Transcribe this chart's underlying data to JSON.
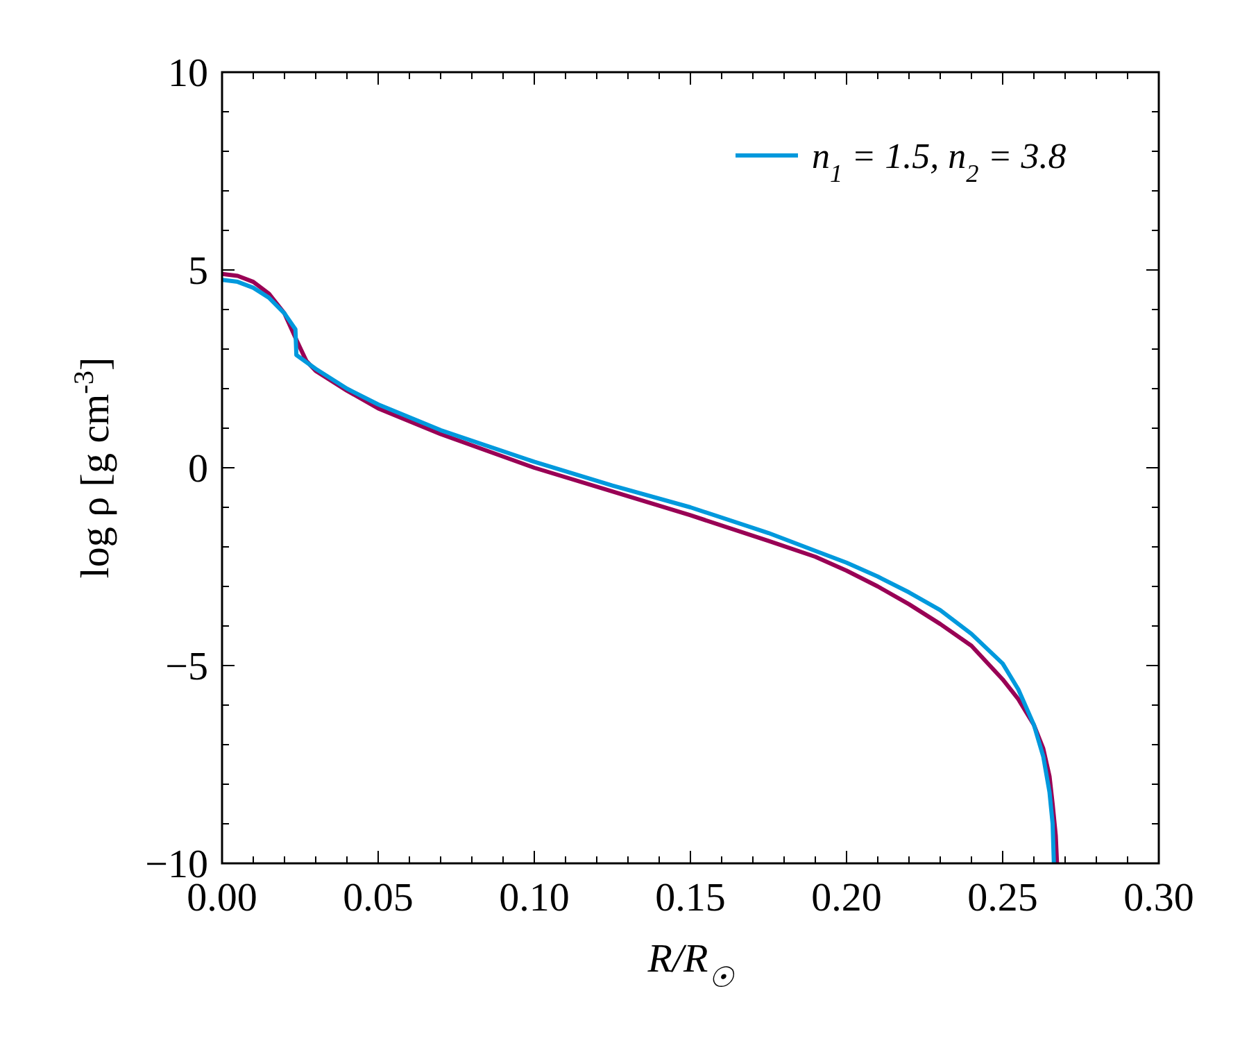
{
  "chart_data": {
    "type": "line",
    "xlabel": "R/R$_{☉}$",
    "ylabel": "log ρ [g cm$^{-3}$]",
    "xlim": [
      0,
      0.3
    ],
    "ylim": [
      -10,
      10
    ],
    "xticks": [
      {
        "value": 0,
        "label": "0.00"
      },
      {
        "value": 0.01,
        "label": null
      },
      {
        "value": 0.02,
        "label": null
      },
      {
        "value": 0.03,
        "label": null
      },
      {
        "value": 0.04,
        "label": null
      },
      {
        "value": 0.05,
        "label": "0.05"
      },
      {
        "value": 0.06,
        "label": null
      },
      {
        "value": 0.07,
        "label": null
      },
      {
        "value": 0.08,
        "label": null
      },
      {
        "value": 0.09,
        "label": null
      },
      {
        "value": 0.1,
        "label": "0.10"
      },
      {
        "value": 0.11,
        "label": null
      },
      {
        "value": 0.12,
        "label": null
      },
      {
        "value": 0.13,
        "label": null
      },
      {
        "value": 0.14,
        "label": null
      },
      {
        "value": 0.15,
        "label": "0.15"
      },
      {
        "value": 0.16,
        "label": null
      },
      {
        "value": 0.17,
        "label": null
      },
      {
        "value": 0.18,
        "label": null
      },
      {
        "value": 0.19,
        "label": null
      },
      {
        "value": 0.2,
        "label": "0.20"
      },
      {
        "value": 0.21,
        "label": null
      },
      {
        "value": 0.22,
        "label": null
      },
      {
        "value": 0.23,
        "label": null
      },
      {
        "value": 0.24,
        "label": null
      },
      {
        "value": 0.25,
        "label": "0.25"
      },
      {
        "value": 0.26,
        "label": null
      },
      {
        "value": 0.27,
        "label": null
      },
      {
        "value": 0.28,
        "label": null
      },
      {
        "value": 0.29,
        "label": null
      },
      {
        "value": 0.3,
        "label": "0.30"
      }
    ],
    "yticks": [
      {
        "value": -10,
        "label": "−10"
      },
      {
        "value": -9,
        "label": null
      },
      {
        "value": -8,
        "label": null
      },
      {
        "value": -7,
        "label": null
      },
      {
        "value": -6,
        "label": null
      },
      {
        "value": -5,
        "label": "−5"
      },
      {
        "value": -4,
        "label": null
      },
      {
        "value": -3,
        "label": null
      },
      {
        "value": -2,
        "label": null
      },
      {
        "value": -1,
        "label": null
      },
      0,
      {
        "value": 1,
        "label": null
      },
      {
        "value": 2,
        "label": null
      },
      {
        "value": 3,
        "label": null
      },
      {
        "value": 4,
        "label": null
      },
      5,
      {
        "value": 6,
        "label": null
      },
      {
        "value": 7,
        "label": null
      },
      {
        "value": 8,
        "label": null
      },
      {
        "value": 9,
        "label": null
      },
      10
    ],
    "legend": "top right",
    "grid": false,
    "series": [
      {
        "color": "#990055",
        "x": [
          0,
          0.005,
          0.01,
          0.015,
          0.02,
          0.024,
          0.027,
          0.03,
          0.04,
          0.05,
          0.07,
          0.1,
          0.125,
          0.15,
          0.175,
          0.19,
          0.2,
          0.21,
          0.22,
          0.23,
          0.24,
          0.25,
          0.255,
          0.26,
          0.263,
          0.265,
          0.266,
          0.267,
          0.2674
        ],
        "values": [
          4.9,
          4.85,
          4.7,
          4.4,
          3.9,
          3.2,
          2.7,
          2.45,
          1.95,
          1.5,
          0.85,
          0,
          -0.6,
          -1.2,
          -1.85,
          -2.25,
          -2.6,
          -3.0,
          -3.45,
          -3.95,
          -4.5,
          -5.35,
          -5.85,
          -6.5,
          -7.1,
          -7.8,
          -8.5,
          -9.3,
          -10
        ]
      },
      {
        "name": "n$_{1}$ = 1.5, n$_{2}$ = 3.8",
        "color": "#0099dd",
        "x": [
          0,
          0.005,
          0.01,
          0.015,
          0.02,
          0.0235,
          0.0238,
          0.03,
          0.04,
          0.05,
          0.07,
          0.1,
          0.125,
          0.15,
          0.175,
          0.19,
          0.2,
          0.21,
          0.22,
          0.23,
          0.24,
          0.25,
          0.255,
          0.26,
          0.263,
          0.265,
          0.266,
          0.2664
        ],
        "values": [
          4.75,
          4.7,
          4.55,
          4.3,
          3.9,
          3.5,
          2.85,
          2.5,
          2.0,
          1.6,
          0.95,
          0.15,
          -0.45,
          -1.0,
          -1.65,
          -2.1,
          -2.4,
          -2.75,
          -3.15,
          -3.6,
          -4.2,
          -4.95,
          -5.6,
          -6.5,
          -7.3,
          -8.2,
          -9.0,
          -10
        ]
      }
    ]
  }
}
